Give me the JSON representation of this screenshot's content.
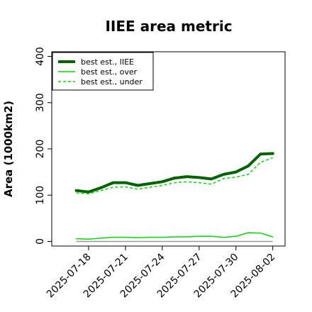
{
  "chart_data": {
    "type": "line",
    "title": "IIEE area metric",
    "xlabel": "",
    "ylabel": "Area (1000km2)",
    "ylim": [
      -10,
      410
    ],
    "xlim": [
      "2025-07-15",
      "2025-08-03"
    ],
    "yticks": [
      0,
      100,
      200,
      300,
      400
    ],
    "xticks": [
      "2025-07-18",
      "2025-07-21",
      "2025-07-24",
      "2025-07-27",
      "2025-07-30",
      "2025-08-02"
    ],
    "grid": false,
    "legend_position": "top-left",
    "x": [
      "2025-07-17",
      "2025-07-18",
      "2025-07-19",
      "2025-07-20",
      "2025-07-21",
      "2025-07-22",
      "2025-07-23",
      "2025-07-24",
      "2025-07-25",
      "2025-07-26",
      "2025-07-27",
      "2025-07-28",
      "2025-07-29",
      "2025-07-30",
      "2025-07-31",
      "2025-08-01",
      "2025-08-02"
    ],
    "series": [
      {
        "name": "best est., IIEE",
        "color": "#006400",
        "style": "solid",
        "weight": "thick",
        "values": [
          110,
          107,
          116,
          127,
          127,
          121,
          125,
          129,
          137,
          140,
          138,
          135,
          145,
          150,
          163,
          189,
          190
        ]
      },
      {
        "name": "best est., over",
        "color": "#00dd00",
        "style": "solid",
        "weight": "thin",
        "values": [
          6,
          5,
          7,
          9,
          9,
          8,
          9,
          9,
          10,
          10,
          11,
          11,
          9,
          11,
          19,
          18,
          10
        ]
      },
      {
        "name": "best est., under",
        "color": "#00dd00",
        "style": "dashed",
        "weight": "thin",
        "values": [
          105,
          103,
          110,
          117,
          118,
          113,
          117,
          121,
          127,
          129,
          127,
          124,
          136,
          139,
          145,
          171,
          181
        ]
      }
    ],
    "baseline": {
      "value": 0,
      "color": "#999999"
    }
  }
}
